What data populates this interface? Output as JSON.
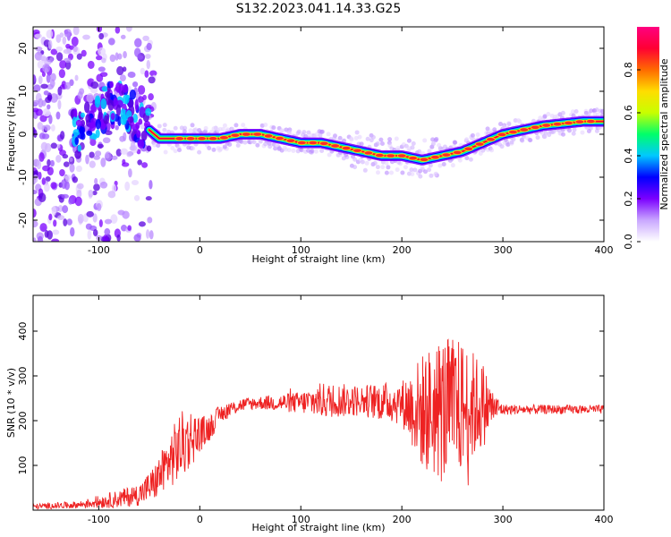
{
  "figure": {
    "title": "S132.2023.041.14.33.G25"
  },
  "chart_data": [
    {
      "type": "heatmap",
      "xlabel": "Height of straight line (km)",
      "ylabel": "Frequency (Hz)",
      "xlim": [
        -165,
        400
      ],
      "ylim": [
        -25,
        25
      ],
      "x_ticks": [
        -100,
        0,
        100,
        200,
        300,
        400
      ],
      "y_ticks": [
        -20,
        -10,
        0,
        10,
        20
      ],
      "colorbar": {
        "label": "Normalized spectral amplitude",
        "range": [
          0.0,
          1.0
        ],
        "ticks": [
          "0.0",
          "0.2",
          "0.4",
          "0.6",
          "0.8"
        ],
        "colors": [
          "#ffffff",
          "#c9a7ff",
          "#7b00ff",
          "#0000ff",
          "#00c8ff",
          "#00ff6a",
          "#c8ff00",
          "#ffdd00",
          "#ff6a00",
          "#ff0033",
          "#ff0080"
        ]
      },
      "ridge": {
        "x": [
          -120,
          -100,
          -80,
          -60,
          -45,
          -40,
          -20,
          0,
          20,
          40,
          60,
          80,
          100,
          120,
          140,
          160,
          180,
          200,
          220,
          240,
          260,
          280,
          300,
          320,
          340,
          360,
          380,
          400
        ],
        "y": [
          0,
          5,
          8,
          3,
          0,
          -1,
          -1,
          -1,
          -1,
          0,
          0,
          -1,
          -2,
          -2,
          -3,
          -4,
          -5,
          -5,
          -6,
          -5,
          -4,
          -2,
          0,
          1,
          2,
          2.5,
          3,
          3
        ]
      }
    },
    {
      "type": "line",
      "xlabel": "Height of straight line (km)",
      "ylabel": "SNR (10 * v/v)",
      "xlim": [
        -165,
        400
      ],
      "ylim": [
        0,
        480
      ],
      "x_ticks": [
        -100,
        0,
        100,
        200,
        300,
        400
      ],
      "y_ticks": [
        100,
        200,
        300,
        400
      ],
      "color": "#ee2222",
      "envelope": {
        "x": [
          -165,
          -120,
          -80,
          -60,
          -45,
          -30,
          -20,
          -10,
          0,
          10,
          20,
          40,
          60,
          100,
          120,
          160,
          200,
          220,
          240,
          260,
          280,
          290,
          300,
          350,
          400
        ],
        "mean": [
          8,
          12,
          25,
          35,
          60,
          110,
          140,
          160,
          170,
          185,
          215,
          235,
          240,
          240,
          245,
          245,
          240,
          220,
          225,
          230,
          235,
          230,
          225,
          225,
          225
        ],
        "spread": [
          6,
          8,
          20,
          25,
          40,
          60,
          80,
          70,
          40,
          30,
          20,
          15,
          15,
          25,
          40,
          35,
          50,
          130,
          170,
          150,
          100,
          40,
          12,
          10,
          10
        ]
      }
    }
  ]
}
